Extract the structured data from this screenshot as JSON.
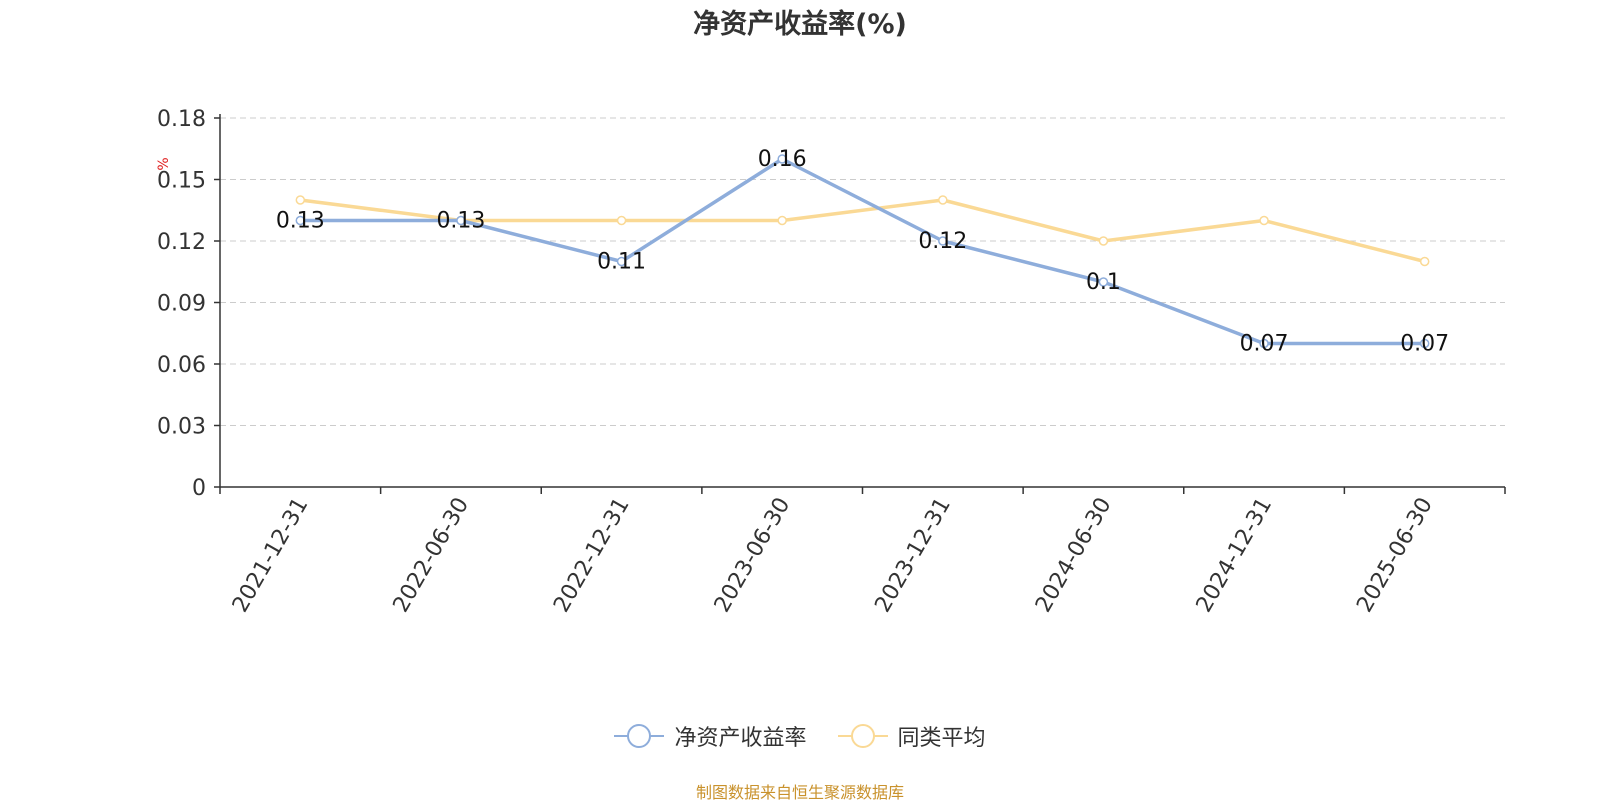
{
  "chart_data": {
    "type": "line",
    "title": "净资产收益率(%)",
    "ylabel": "%",
    "categories": [
      "2021-12-31",
      "2022-06-30",
      "2022-12-31",
      "2023-06-30",
      "2023-12-31",
      "2024-06-30",
      "2024-12-31",
      "2025-06-30"
    ],
    "ylim": [
      0,
      0.18
    ],
    "yticks": [
      "0",
      "0.03",
      "0.06",
      "0.09",
      "0.12",
      "0.15",
      "0.18"
    ],
    "grid": true,
    "legend_position": "bottom-center",
    "series": [
      {
        "name": "净资产收益率",
        "color": "#8eaddb",
        "values": [
          0.13,
          0.13,
          0.11,
          0.16,
          0.12,
          0.1,
          0.07,
          0.07
        ],
        "data_labels": [
          "0.13",
          "0.13",
          "0.11",
          "0.16",
          "0.12",
          "0.1",
          "0.07",
          "0.07"
        ]
      },
      {
        "name": "同类平均",
        "color": "#fad995",
        "values": [
          0.14,
          0.13,
          0.13,
          0.13,
          0.14,
          0.12,
          0.13,
          0.11
        ]
      }
    ]
  },
  "source_note": "制图数据来自恒生聚源数据库",
  "colors": {
    "axis": "#333333",
    "grid": "#cccccc",
    "ylabel": "#e02020",
    "source": "#c9922c"
  }
}
